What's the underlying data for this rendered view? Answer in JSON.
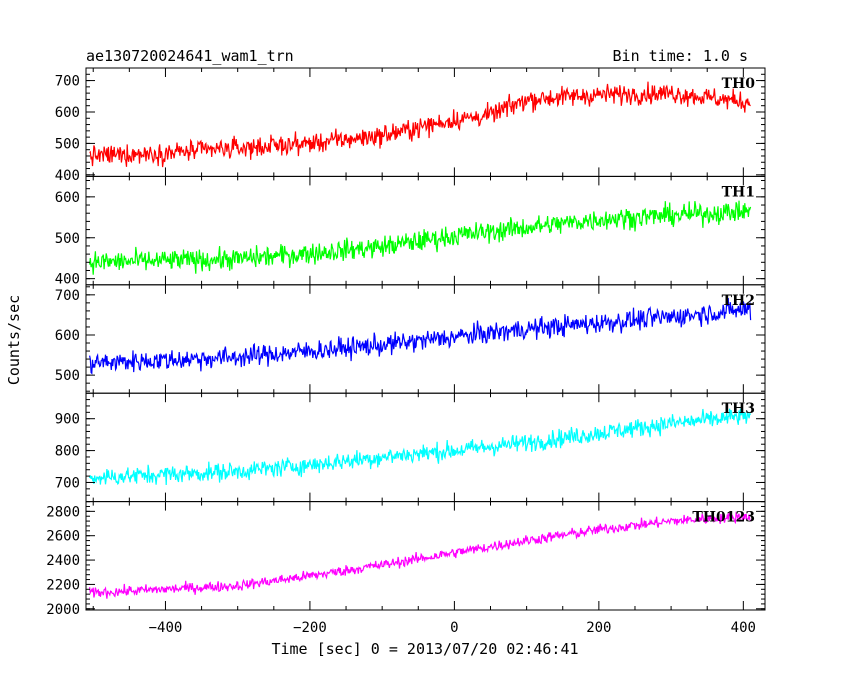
{
  "chart_data": {
    "type": "line",
    "title": "ae130720024641_wam1_trn",
    "bin_time_label": "Bin time: 1.0 s",
    "xlabel": "Time [sec] 0 = 2013/07/20 02:46:41",
    "ylabel": "Counts/sec",
    "xlim": [
      -510,
      430
    ],
    "x_ticks": [
      -400,
      -200,
      0,
      200,
      400
    ],
    "x_tick_labels": [
      "−400",
      "−200",
      "0",
      "200",
      "400"
    ],
    "x_range": [
      -505,
      410
    ],
    "grid": false,
    "panels": [
      {
        "name": "TH0",
        "color": "#ff0000",
        "ylim": [
          395,
          740
        ],
        "y_ticks": [
          400,
          500,
          600,
          700
        ],
        "y_tick_labels": [
          "400",
          "500",
          "600",
          "700"
        ],
        "trend": [
          [
            -505,
            460
          ],
          [
            -400,
            470
          ],
          [
            -200,
            500
          ],
          [
            -100,
            525
          ],
          [
            0,
            575
          ],
          [
            50,
            590
          ],
          [
            100,
            640
          ],
          [
            200,
            655
          ],
          [
            300,
            660
          ],
          [
            410,
            630
          ]
        ],
        "noise": 55
      },
      {
        "name": "TH1",
        "color": "#00ff00",
        "ylim": [
          385,
          650
        ],
        "y_ticks": [
          400,
          500,
          600
        ],
        "y_tick_labels": [
          "400",
          "500",
          "600"
        ],
        "trend": [
          [
            -505,
            440
          ],
          [
            -300,
            448
          ],
          [
            -200,
            462
          ],
          [
            -100,
            478
          ],
          [
            0,
            505
          ],
          [
            100,
            525
          ],
          [
            200,
            545
          ],
          [
            300,
            555
          ],
          [
            410,
            565
          ]
        ],
        "noise": 45
      },
      {
        "name": "TH2",
        "color": "#0000ff",
        "ylim": [
          455,
          725
        ],
        "y_ticks": [
          500,
          600,
          700
        ],
        "y_tick_labels": [
          "500",
          "600",
          "700"
        ],
        "trend": [
          [
            -505,
            530
          ],
          [
            -300,
            545
          ],
          [
            -200,
            560
          ],
          [
            -100,
            575
          ],
          [
            0,
            595
          ],
          [
            100,
            615
          ],
          [
            200,
            630
          ],
          [
            300,
            645
          ],
          [
            410,
            665
          ]
        ],
        "noise": 45
      },
      {
        "name": "TH3",
        "color": "#00ffff",
        "ylim": [
          640,
          980
        ],
        "y_ticks": [
          700,
          800,
          900
        ],
        "y_tick_labels": [
          "700",
          "800",
          "900"
        ],
        "trend": [
          [
            -505,
            715
          ],
          [
            -300,
            735
          ],
          [
            -200,
            755
          ],
          [
            -100,
            780
          ],
          [
            0,
            800
          ],
          [
            100,
            825
          ],
          [
            200,
            855
          ],
          [
            300,
            885
          ],
          [
            410,
            910
          ]
        ],
        "noise": 50
      },
      {
        "name": "TH0123",
        "color": "#ff00ff",
        "ylim": [
          1990,
          2880
        ],
        "y_ticks": [
          2000,
          2200,
          2400,
          2600,
          2800
        ],
        "y_tick_labels": [
          "2000",
          "2200",
          "2400",
          "2600",
          "2800"
        ],
        "trend": [
          [
            -505,
            2130
          ],
          [
            -300,
            2190
          ],
          [
            -200,
            2270
          ],
          [
            -100,
            2360
          ],
          [
            0,
            2460
          ],
          [
            100,
            2560
          ],
          [
            200,
            2650
          ],
          [
            300,
            2720
          ],
          [
            410,
            2760
          ]
        ],
        "noise": 75
      }
    ]
  }
}
